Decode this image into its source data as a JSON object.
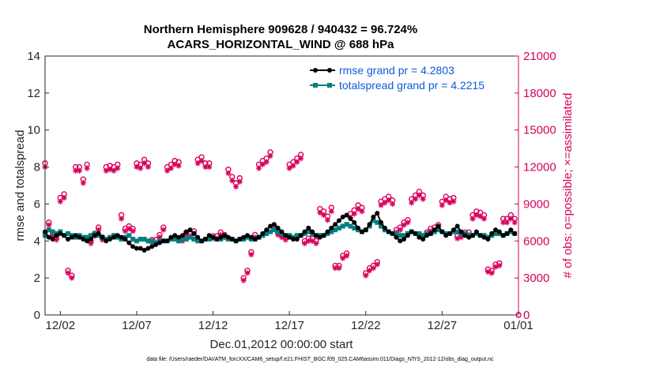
{
  "chart_data": {
    "type": "line",
    "title": "Northern Hemisphere 909628 / 940432 = 96.724%",
    "subtitle": "ACARS_HORIZONTAL_WIND @ 688 hPa",
    "xlabel": "Dec.01,2012 00:00:00 start",
    "ylabel": "rmse and totalspread",
    "y2label": "# of obs: o=possible; ×=assimilated",
    "footnote": "data file: /Users/raeder/DAI/ATM_forcXX/CAM6_setup/f.e21.FHIST_BGC.f09_025.CAM6assim.011/Diags_NTrS_2012-12/obs_diag_output.nc",
    "xlim": [
      1,
      32
    ],
    "ylim": [
      0,
      14
    ],
    "y2lim": [
      0,
      21000
    ],
    "xticks": [
      2,
      7,
      12,
      17,
      22,
      27,
      32
    ],
    "xtick_labels": [
      "12/02",
      "12/07",
      "12/12",
      "12/17",
      "12/22",
      "12/27",
      "01/01"
    ],
    "yticks": [
      "0",
      "2",
      "4",
      "6",
      "8",
      "10",
      "12",
      "14"
    ],
    "y2ticks": [
      "0",
      "3000",
      "6000",
      "9000",
      "12000",
      "15000",
      "18000",
      "21000"
    ],
    "colors": {
      "rmse": "#000000",
      "spread": "#008080",
      "obs": "#d8005a",
      "legend_text": "#0b5bd6",
      "right_axis": "#d8005a"
    },
    "legend_position": "top-right",
    "x": [
      1.0,
      1.25,
      1.5,
      1.75,
      2.0,
      2.25,
      2.5,
      2.75,
      3.0,
      3.25,
      3.5,
      3.75,
      4.0,
      4.25,
      4.5,
      4.75,
      5.0,
      5.25,
      5.5,
      5.75,
      6.0,
      6.25,
      6.5,
      6.75,
      7.0,
      7.25,
      7.5,
      7.75,
      8.0,
      8.25,
      8.5,
      8.75,
      9.0,
      9.25,
      9.5,
      9.75,
      10.0,
      10.25,
      10.5,
      10.75,
      11.0,
      11.25,
      11.5,
      11.75,
      12.0,
      12.25,
      12.5,
      12.75,
      13.0,
      13.25,
      13.5,
      13.75,
      14.0,
      14.25,
      14.5,
      14.75,
      15.0,
      15.25,
      15.5,
      15.75,
      16.0,
      16.25,
      16.5,
      16.75,
      17.0,
      17.25,
      17.5,
      17.75,
      18.0,
      18.25,
      18.5,
      18.75,
      19.0,
      19.25,
      19.5,
      19.75,
      20.0,
      20.25,
      20.5,
      20.75,
      21.0,
      21.25,
      21.5,
      21.75,
      22.0,
      22.25,
      22.5,
      22.75,
      23.0,
      23.25,
      23.5,
      23.75,
      24.0,
      24.25,
      24.5,
      24.75,
      25.0,
      25.25,
      25.5,
      25.75,
      26.0,
      26.25,
      26.5,
      26.75,
      27.0,
      27.25,
      27.5,
      27.75,
      28.0,
      28.25,
      28.5,
      28.75,
      29.0,
      29.25,
      29.5,
      29.75,
      30.0,
      30.25,
      30.5,
      30.75,
      31.0,
      31.25,
      31.5,
      31.75
    ],
    "series": [
      {
        "name": "rmse grand pr = 4.2803",
        "marker": "dot",
        "values": [
          4.5,
          4.2,
          4.1,
          4.3,
          4.4,
          4.3,
          4.1,
          4.2,
          4.3,
          4.2,
          4.1,
          4.0,
          4.1,
          4.3,
          4.4,
          4.2,
          4.0,
          4.1,
          4.2,
          4.3,
          4.2,
          4.1,
          3.9,
          3.7,
          3.6,
          3.6,
          3.5,
          3.6,
          3.7,
          3.8,
          3.9,
          4.0,
          4.0,
          4.2,
          4.3,
          4.2,
          4.3,
          4.5,
          4.6,
          4.4,
          4.2,
          4.0,
          4.1,
          4.3,
          4.2,
          4.1,
          4.2,
          4.3,
          4.2,
          4.1,
          4.0,
          4.1,
          4.2,
          4.3,
          4.2,
          4.1,
          4.2,
          4.4,
          4.6,
          4.8,
          4.9,
          4.7,
          4.5,
          4.3,
          4.2,
          4.1,
          4.1,
          4.3,
          4.5,
          4.7,
          4.5,
          4.3,
          4.2,
          4.3,
          4.5,
          4.7,
          4.9,
          5.1,
          5.3,
          5.4,
          5.2,
          5.0,
          4.7,
          4.5,
          4.6,
          4.9,
          5.3,
          5.5,
          5.0,
          4.7,
          4.5,
          4.4,
          4.2,
          4.0,
          4.1,
          4.3,
          4.5,
          4.4,
          4.2,
          4.1,
          4.3,
          4.4,
          4.6,
          4.8,
          4.5,
          4.3,
          4.4,
          4.6,
          4.8,
          4.5,
          4.3,
          4.2,
          4.3,
          4.5,
          4.3,
          4.2,
          4.1,
          4.4,
          4.6,
          4.5,
          4.3,
          4.4,
          4.6,
          4.4
        ],
        "color": "#000000"
      },
      {
        "name": "totalspread grand pr = 4.2215",
        "marker": "square",
        "values": [
          4.3,
          4.6,
          4.5,
          4.4,
          4.5,
          4.3,
          4.4,
          4.3,
          4.2,
          4.3,
          4.2,
          4.2,
          4.3,
          4.4,
          4.3,
          4.2,
          4.1,
          4.2,
          4.3,
          4.2,
          4.1,
          4.2,
          4.3,
          4.1,
          4.0,
          4.1,
          4.1,
          4.0,
          4.0,
          3.9,
          4.0,
          4.0,
          4.0,
          4.1,
          4.1,
          4.0,
          4.1,
          4.1,
          4.2,
          4.1,
          4.0,
          4.0,
          4.1,
          4.1,
          4.2,
          4.1,
          4.1,
          4.2,
          4.1,
          4.1,
          4.0,
          4.1,
          4.1,
          4.2,
          4.1,
          4.1,
          4.2,
          4.3,
          4.4,
          4.5,
          4.6,
          4.5,
          4.4,
          4.3,
          4.3,
          4.2,
          4.3,
          4.3,
          4.4,
          4.5,
          4.4,
          4.3,
          4.3,
          4.3,
          4.4,
          4.5,
          4.6,
          4.7,
          4.8,
          4.9,
          4.8,
          4.7,
          4.6,
          4.5,
          4.6,
          4.8,
          5.1,
          5.0,
          4.8,
          4.6,
          4.5,
          4.4,
          4.4,
          4.3,
          4.3,
          4.4,
          4.5,
          4.4,
          4.4,
          4.3,
          4.4,
          4.4,
          4.5,
          4.6,
          4.5,
          4.4,
          4.4,
          4.5,
          4.5,
          4.4,
          4.4,
          4.3,
          4.3,
          4.4,
          4.3,
          4.3,
          4.2,
          4.3,
          4.4,
          4.4,
          4.3,
          4.4,
          4.5,
          4.4
        ],
        "color": "#008080"
      }
    ],
    "obs_possible": [
      12300,
      7500,
      6600,
      6300,
      9500,
      9800,
      3600,
      3200,
      12000,
      12000,
      11000,
      12200,
      6000,
      6600,
      7100,
      6300,
      12000,
      12100,
      12000,
      12200,
      8100,
      7000,
      7200,
      7000,
      12300,
      12200,
      12600,
      12300,
      6100,
      6100,
      6500,
      7100,
      12000,
      12200,
      12500,
      12400,
      6200,
      6700,
      6600,
      6800,
      12600,
      12800,
      12300,
      12300,
      6400,
      6400,
      6700,
      6500,
      11800,
      11200,
      10700,
      11100,
      3000,
      3600,
      5100,
      6500,
      12200,
      12500,
      12700,
      13200,
      7200,
      6700,
      6500,
      6300,
      12200,
      12400,
      12700,
      13000,
      6000,
      6200,
      6200,
      6000,
      8600,
      8400,
      8000,
      8700,
      4000,
      4000,
      4800,
      5000,
      8200,
      8500,
      8900,
      8700,
      3400,
      3800,
      4000,
      4300,
      9200,
      9400,
      9600,
      9300,
      6900,
      7100,
      7500,
      7700,
      9400,
      9700,
      10000,
      9700,
      6700,
      7000,
      7100,
      7300,
      9200,
      9600,
      9400,
      9500,
      6400,
      6500,
      6700,
      6700,
      8100,
      8400,
      8300,
      8100,
      3700,
      3600,
      4100,
      4200,
      7800,
      7800,
      8100,
      7800
    ],
    "obs_assimilated": [
      12000,
      7300,
      6400,
      6100,
      9200,
      9500,
      3400,
      3000,
      11700,
      11700,
      10700,
      11900,
      5800,
      6400,
      6900,
      6100,
      11700,
      11800,
      11700,
      11900,
      7800,
      6800,
      7000,
      6800,
      12000,
      11900,
      12300,
      12000,
      5900,
      5900,
      6300,
      6900,
      11700,
      11900,
      12200,
      12100,
      6000,
      6500,
      6400,
      6600,
      12300,
      12500,
      12000,
      12000,
      6200,
      6200,
      6500,
      6300,
      11500,
      10900,
      10400,
      10800,
      2800,
      3400,
      4900,
      6300,
      11900,
      12200,
      12400,
      12900,
      7000,
      6500,
      6300,
      6100,
      11900,
      12100,
      12400,
      12700,
      5800,
      6000,
      6000,
      5800,
      8300,
      8100,
      7700,
      8400,
      3800,
      3800,
      4600,
      4800,
      7900,
      8200,
      8600,
      8400,
      3200,
      3600,
      3800,
      4100,
      8900,
      9100,
      9300,
      9000,
      6700,
      6900,
      7300,
      7500,
      9100,
      9400,
      9700,
      9400,
      6500,
      6800,
      6900,
      7100,
      8900,
      9300,
      9100,
      9200,
      6200,
      6300,
      6500,
      6500,
      7800,
      8100,
      8000,
      7800,
      3500,
      3400,
      3900,
      4000,
      7500,
      7500,
      7800,
      7500
    ],
    "obs_last_x": 32,
    "obs_last_value": 0
  }
}
